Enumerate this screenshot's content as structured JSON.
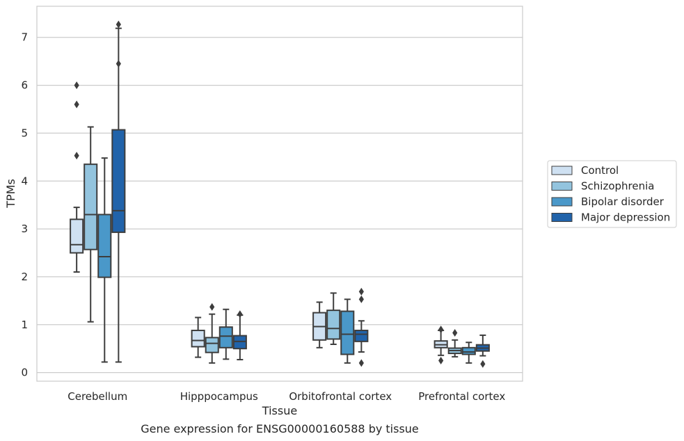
{
  "chart_data": {
    "type": "boxplot",
    "caption": "Gene expression for ENSG00000160588 by tissue",
    "xlabel": "Tissue",
    "ylabel": "TPMs",
    "ylim": [
      -0.18,
      7.65
    ],
    "yticks": [
      0,
      1,
      2,
      3,
      4,
      5,
      6,
      7
    ],
    "grid": "horizontal",
    "legend_position": "right",
    "categories": [
      "Cerebellum",
      "Hipppocampus",
      "Orbitofrontal cortex",
      "Prefrontal cortex"
    ],
    "series": [
      {
        "name": "Control",
        "color": "#cfe1f2",
        "boxes": [
          {
            "whisker_low": 2.1,
            "q1": 2.5,
            "median": 2.67,
            "q3": 3.2,
            "whisker_high": 3.45,
            "outliers": [
              6.0,
              5.6,
              4.53
            ]
          },
          {
            "whisker_low": 0.32,
            "q1": 0.54,
            "median": 0.67,
            "q3": 0.88,
            "whisker_high": 1.15,
            "outliers": []
          },
          {
            "whisker_low": 0.52,
            "q1": 0.68,
            "median": 0.96,
            "q3": 1.25,
            "whisker_high": 1.47,
            "outliers": []
          },
          {
            "whisker_low": 0.36,
            "q1": 0.52,
            "median": 0.58,
            "q3": 0.66,
            "whisker_high": 0.88,
            "outliers": [
              0.9,
              0.25
            ]
          }
        ]
      },
      {
        "name": "Schizophrenia",
        "color": "#93c4de",
        "boxes": [
          {
            "whisker_low": 1.06,
            "q1": 2.57,
            "median": 3.3,
            "q3": 4.35,
            "whisker_high": 5.13,
            "outliers": []
          },
          {
            "whisker_low": 0.2,
            "q1": 0.42,
            "median": 0.61,
            "q3": 0.73,
            "whisker_high": 1.22,
            "outliers": [
              1.37
            ]
          },
          {
            "whisker_low": 0.59,
            "q1": 0.7,
            "median": 0.92,
            "q3": 1.3,
            "whisker_high": 1.66,
            "outliers": []
          },
          {
            "whisker_low": 0.33,
            "q1": 0.4,
            "median": 0.46,
            "q3": 0.51,
            "whisker_high": 0.68,
            "outliers": [
              0.83
            ]
          }
        ]
      },
      {
        "name": "Bipolar disorder",
        "color": "#4a98c9",
        "boxes": [
          {
            "whisker_low": 0.22,
            "q1": 1.99,
            "median": 2.42,
            "q3": 3.3,
            "whisker_high": 4.48,
            "outliers": []
          },
          {
            "whisker_low": 0.28,
            "q1": 0.52,
            "median": 0.76,
            "q3": 0.95,
            "whisker_high": 1.32,
            "outliers": []
          },
          {
            "whisker_low": 0.2,
            "q1": 0.38,
            "median": 0.8,
            "q3": 1.28,
            "whisker_high": 1.53,
            "outliers": []
          },
          {
            "whisker_low": 0.2,
            "q1": 0.38,
            "median": 0.43,
            "q3": 0.52,
            "whisker_high": 0.63,
            "outliers": []
          }
        ]
      },
      {
        "name": "Major depression",
        "color": "#2163aa",
        "boxes": [
          {
            "whisker_low": 0.22,
            "q1": 2.93,
            "median": 3.38,
            "q3": 5.07,
            "whisker_high": 7.19,
            "outliers": [
              7.27,
              6.45
            ]
          },
          {
            "whisker_low": 0.27,
            "q1": 0.5,
            "median": 0.65,
            "q3": 0.77,
            "whisker_high": 1.2,
            "outliers": [
              1.22
            ]
          },
          {
            "whisker_low": 0.43,
            "q1": 0.65,
            "median": 0.8,
            "q3": 0.88,
            "whisker_high": 1.08,
            "outliers": [
              1.69,
              1.53,
              0.2
            ]
          },
          {
            "whisker_low": 0.35,
            "q1": 0.45,
            "median": 0.51,
            "q3": 0.58,
            "whisker_high": 0.78,
            "outliers": [
              0.18
            ]
          }
        ]
      }
    ]
  }
}
